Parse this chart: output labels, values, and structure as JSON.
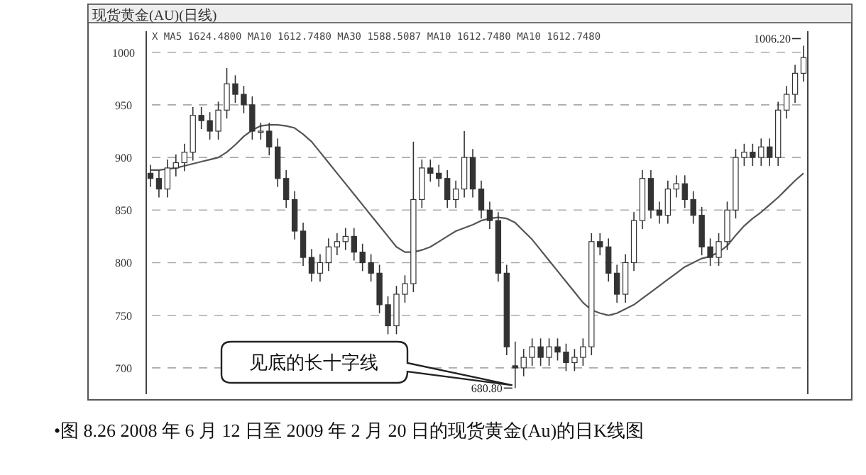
{
  "chart_data": {
    "type": "candlestick",
    "title": "现货黄金(AU)(日线)",
    "annotations": [
      "X MA5 1624.4800 MA10 1612.7480 MA30 1588.5087 MA10 1612.7480 MA10 1612.7480",
      "•图 8.26  2008 年 6 月 12 日至 2009 年 2 月 20 日的现货黄金(Au)的日K线图",
      "见底的长十字线",
      "680.80",
      "1006.20"
    ],
    "categories": [
      null,
      null,
      null,
      null,
      null,
      null,
      null,
      null,
      null,
      null,
      null,
      null,
      null,
      null,
      null,
      null,
      null,
      null,
      null,
      null,
      null,
      null,
      null,
      null,
      null,
      null,
      null,
      null,
      null,
      null,
      null,
      null,
      null,
      null,
      null,
      null,
      null,
      null,
      null,
      null,
      null,
      null,
      null,
      null,
      null,
      null,
      null,
      null,
      null,
      null,
      null,
      null,
      null,
      null,
      null,
      null,
      null,
      null,
      null,
      null,
      null,
      null,
      null,
      null,
      null,
      null,
      null,
      null,
      null,
      null,
      null,
      null,
      null,
      null,
      null,
      null,
      null,
      null
    ],
    "ohlc": [
      [
        885,
        893,
        872,
        880
      ],
      [
        880,
        888,
        862,
        870
      ],
      [
        870,
        898,
        862,
        890
      ],
      [
        890,
        903,
        882,
        895
      ],
      [
        895,
        913,
        887,
        905
      ],
      [
        905,
        948,
        897,
        940
      ],
      [
        940,
        948,
        927,
        935
      ],
      [
        935,
        943,
        917,
        925
      ],
      [
        925,
        953,
        917,
        945
      ],
      [
        945,
        985,
        937,
        970
      ],
      [
        970,
        978,
        952,
        960
      ],
      [
        960,
        968,
        942,
        950
      ],
      [
        950,
        958,
        917,
        925
      ],
      [
        925,
        933,
        917,
        925
      ],
      [
        925,
        933,
        902,
        910
      ],
      [
        910,
        918,
        872,
        880
      ],
      [
        880,
        888,
        852,
        860
      ],
      [
        860,
        868,
        822,
        830
      ],
      [
        830,
        838,
        797,
        805
      ],
      [
        805,
        813,
        782,
        790
      ],
      [
        790,
        808,
        782,
        800
      ],
      [
        800,
        823,
        792,
        815
      ],
      [
        815,
        828,
        807,
        820
      ],
      [
        820,
        833,
        812,
        825
      ],
      [
        825,
        833,
        802,
        810
      ],
      [
        810,
        818,
        792,
        800
      ],
      [
        800,
        808,
        782,
        790
      ],
      [
        790,
        798,
        752,
        760
      ],
      [
        760,
        768,
        732,
        740
      ],
      [
        740,
        778,
        732,
        770
      ],
      [
        770,
        788,
        762,
        780
      ],
      [
        780,
        915,
        772,
        860
      ],
      [
        860,
        898,
        852,
        890
      ],
      [
        890,
        898,
        877,
        885
      ],
      [
        885,
        893,
        872,
        880
      ],
      [
        880,
        888,
        852,
        860
      ],
      [
        860,
        878,
        852,
        870
      ],
      [
        870,
        925,
        862,
        900
      ],
      [
        900,
        908,
        862,
        870
      ],
      [
        870,
        878,
        842,
        850
      ],
      [
        850,
        858,
        832,
        840
      ],
      [
        840,
        848,
        782,
        790
      ],
      [
        790,
        798,
        712,
        720
      ],
      [
        702,
        725,
        680.8,
        700
      ],
      [
        700,
        718,
        692,
        710
      ],
      [
        710,
        728,
        702,
        720
      ],
      [
        720,
        728,
        702,
        710
      ],
      [
        710,
        728,
        702,
        720
      ],
      [
        720,
        728,
        707,
        715
      ],
      [
        715,
        723,
        697,
        705
      ],
      [
        705,
        718,
        697,
        710
      ],
      [
        710,
        728,
        702,
        720
      ],
      [
        720,
        828,
        712,
        820
      ],
      [
        820,
        828,
        807,
        815
      ],
      [
        815,
        823,
        782,
        790
      ],
      [
        790,
        798,
        762,
        770
      ],
      [
        770,
        808,
        762,
        800
      ],
      [
        800,
        848,
        792,
        840
      ],
      [
        840,
        888,
        832,
        880
      ],
      [
        880,
        888,
        842,
        850
      ],
      [
        850,
        858,
        837,
        845
      ],
      [
        845,
        878,
        837,
        870
      ],
      [
        870,
        883,
        862,
        875
      ],
      [
        875,
        883,
        852,
        860
      ],
      [
        860,
        868,
        837,
        845
      ],
      [
        845,
        853,
        807,
        815
      ],
      [
        815,
        823,
        797,
        805
      ],
      [
        805,
        828,
        797,
        820
      ],
      [
        820,
        858,
        812,
        850
      ],
      [
        850,
        908,
        842,
        900
      ],
      [
        900,
        913,
        892,
        905
      ],
      [
        905,
        913,
        892,
        900
      ],
      [
        900,
        918,
        892,
        910
      ],
      [
        910,
        918,
        892,
        900
      ],
      [
        900,
        953,
        892,
        945
      ],
      [
        945,
        968,
        937,
        960
      ],
      [
        960,
        988,
        952,
        980
      ],
      [
        980,
        1006.2,
        972,
        995
      ]
    ],
    "series": [
      {
        "type": "line",
        "color": "#555555",
        "values": [
          888,
          888,
          889,
          890,
          892,
          894,
          896,
          898,
          900,
          905,
          912,
          920,
          926,
          930,
          931,
          931,
          930,
          928,
          922,
          915,
          905,
          895,
          885,
          875,
          865,
          855,
          845,
          835,
          825,
          815,
          810,
          810,
          812,
          815,
          820,
          825,
          830,
          833,
          836,
          840,
          842,
          843,
          842,
          838,
          830,
          822,
          812,
          802,
          792,
          782,
          772,
          762,
          755,
          752,
          750,
          752,
          756,
          760,
          766,
          772,
          778,
          784,
          790,
          796,
          800,
          804,
          806,
          810,
          816,
          826,
          835,
          842,
          848,
          855,
          862,
          870,
          878,
          885
        ]
      }
    ],
    "ylim": [
      675,
      1020
    ],
    "yticks": [
      700,
      750,
      800,
      850,
      900,
      950,
      1000
    ],
    "grid": "y",
    "tick_labels": "y"
  }
}
